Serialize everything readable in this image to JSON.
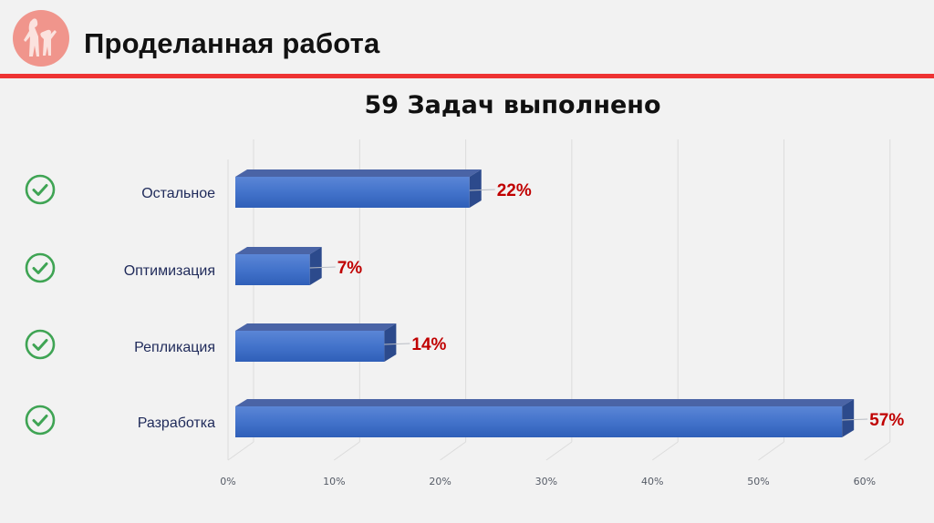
{
  "header": {
    "title": "Проделанная работа",
    "logo_icon": "family-silhouette-logo",
    "accent_color": "#ee3333"
  },
  "chart_data": {
    "type": "bar",
    "orientation": "horizontal",
    "style": "3d",
    "title": "59 Задач выполнено",
    "categories": [
      "Остальное",
      "Оптимизация",
      "Репликация",
      "Разработка"
    ],
    "values": [
      22,
      7,
      14,
      57
    ],
    "value_labels": [
      "22%",
      "7%",
      "14%",
      "57%"
    ],
    "x_ticks": [
      "0%",
      "10%",
      "20%",
      "30%",
      "40%",
      "50%",
      "60%"
    ],
    "xlim": [
      0,
      60
    ],
    "xlabel": "",
    "ylabel": "",
    "grid": true,
    "legend": "none",
    "bar_color": "#4472c4",
    "label_color": "#c00000",
    "row_icons": [
      "check-circle-icon",
      "check-circle-icon",
      "check-circle-icon",
      "check-circle-icon"
    ],
    "row_icon_color": "#3fa454"
  }
}
